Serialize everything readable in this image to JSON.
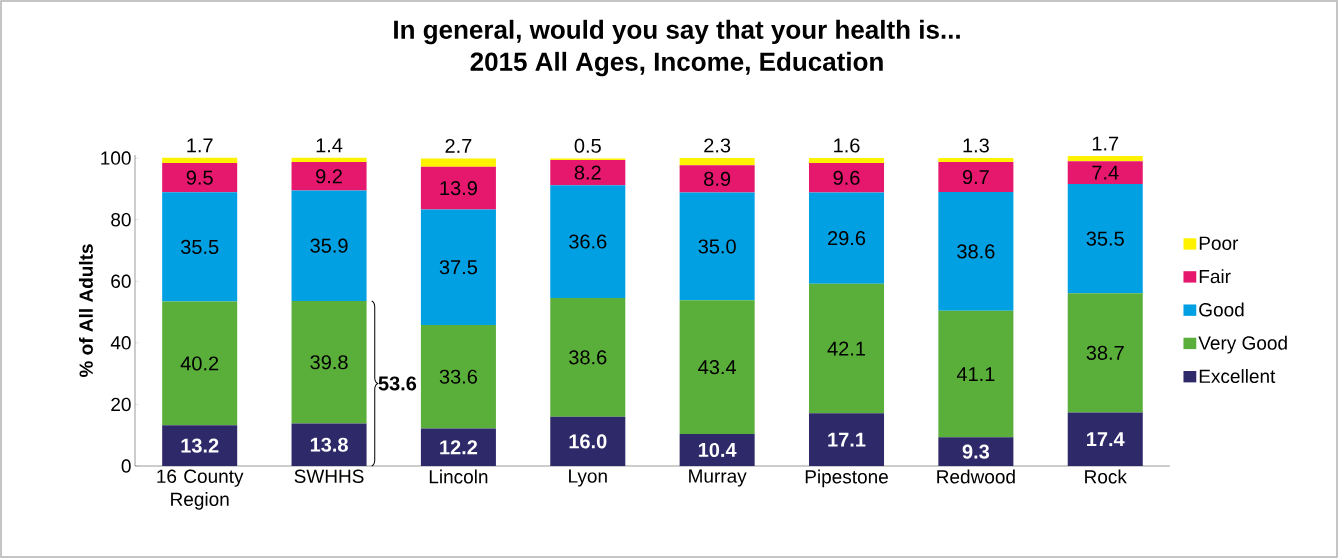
{
  "chart_data": {
    "type": "bar",
    "stacked": true,
    "title": "In general, would you say that your health is...",
    "subtitle": "2015 All Ages, Income, Education",
    "ylabel": "% of All Adults",
    "categories": [
      "16 County Region",
      "SWHHS",
      "Lincoln",
      "Lyon",
      "Murray",
      "Pipestone",
      "Redwood",
      "Rock"
    ],
    "series": [
      {
        "name": "Excellent",
        "color": "#2e2a6a",
        "values": [
          13.2,
          13.8,
          12.2,
          16.0,
          10.4,
          17.1,
          9.3,
          17.4
        ],
        "value_labels": [
          "13.2",
          "13.8",
          "12.2",
          "16.0",
          "10.4",
          "17.1",
          "9.3",
          "17.4"
        ]
      },
      {
        "name": "Very Good",
        "color": "#5aae3a",
        "values": [
          40.2,
          39.8,
          33.6,
          38.6,
          43.4,
          42.1,
          41.1,
          38.7
        ],
        "value_labels": [
          "40.2",
          "39.8",
          "33.6",
          "38.6",
          "43.4",
          "42.1",
          "41.1",
          "38.7"
        ]
      },
      {
        "name": "Good",
        "color": "#00a0e3",
        "values": [
          35.5,
          35.9,
          37.5,
          36.6,
          35.0,
          29.6,
          38.6,
          35.5
        ],
        "value_labels": [
          "35.5",
          "35.9",
          "37.5",
          "36.6",
          "35.0",
          "29.6",
          "38.6",
          "35.5"
        ]
      },
      {
        "name": "Fair",
        "color": "#e5186e",
        "values": [
          9.5,
          9.2,
          13.9,
          8.2,
          8.9,
          9.6,
          9.7,
          7.4
        ],
        "value_labels": [
          "9.5",
          "9.2",
          "13.9",
          "8.2",
          "8.9",
          "9.6",
          "9.7",
          "7.4"
        ]
      },
      {
        "name": "Poor",
        "color": "#fff200",
        "values": [
          1.7,
          1.4,
          2.7,
          0.5,
          2.3,
          1.6,
          1.3,
          1.7
        ],
        "value_labels": [
          "1.7",
          "1.4",
          "2.7",
          "0.5",
          "2.3",
          "1.6",
          "1.3",
          "1.7"
        ]
      }
    ],
    "ylim": [
      0,
      101
    ],
    "yticks": [
      0,
      20,
      40,
      60,
      80,
      100
    ],
    "grid": false,
    "legend": "right",
    "annotations": [
      "53.6"
    ]
  }
}
